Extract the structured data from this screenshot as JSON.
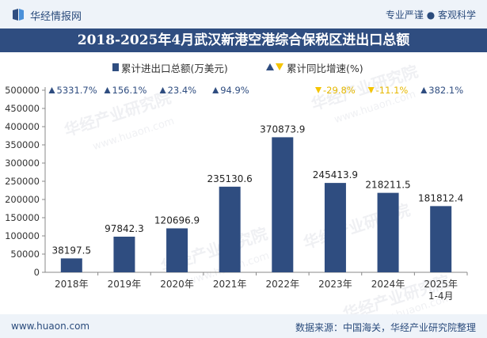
{
  "header": {
    "brand": "华经情报网",
    "slogan": "专业严谨 ● 客观科学"
  },
  "title": "2018-2025年4月武汉新港空港综合保税区进出口总额",
  "legend": {
    "bar_label": "累计进出口总额(万美元)",
    "line_label": "累计同比增速(%)"
  },
  "watermark": {
    "cn": "华经产业研究院",
    "en": "www.huaon.com"
  },
  "footer": {
    "website": "www.huaon.com",
    "source": "数据来源：中国海关，华经产业研究院整理"
  },
  "colors": {
    "bar": "#2f4d80",
    "title_bg": "#2f4d80",
    "up": "#2f4d80",
    "down": "#f5c400",
    "growth_up_text": "#2f4d80",
    "growth_down_text": "#e6b800"
  },
  "chart_data": {
    "type": "bar",
    "title": "2018-2025年4月武汉新港空港综合保税区进出口总额",
    "categories": [
      "2018年",
      "2019年",
      "2020年",
      "2021年",
      "2022年",
      "2023年",
      "2024年",
      "2025年\n1-4月"
    ],
    "series": [
      {
        "name": "累计进出口总额(万美元)",
        "values": [
          38197.5,
          97842.3,
          120696.9,
          235130.6,
          370873.9,
          245413.9,
          218211.5,
          181812.4
        ],
        "labels": [
          "38197.5",
          "97842.3",
          "120696.9",
          "235130.6",
          "370873.9",
          "245413.9",
          "218211.5",
          "181812.4"
        ]
      },
      {
        "name": "累计同比增速(%)",
        "values": [
          5331.7,
          156.1,
          23.4,
          94.9,
          null,
          -29.8,
          -11.1,
          382.1
        ],
        "labels": [
          "5331.7%",
          "156.1%",
          "23.4%",
          "94.9%",
          "",
          "-29.8%",
          "-11.1%",
          "382.1%"
        ]
      }
    ],
    "yticks": [
      "0",
      "50000",
      "100000",
      "150000",
      "200000",
      "250000",
      "300000",
      "350000",
      "400000",
      "450000",
      "500000"
    ],
    "ylim": [
      0,
      500000
    ],
    "xlabel": "",
    "ylabel": ""
  }
}
